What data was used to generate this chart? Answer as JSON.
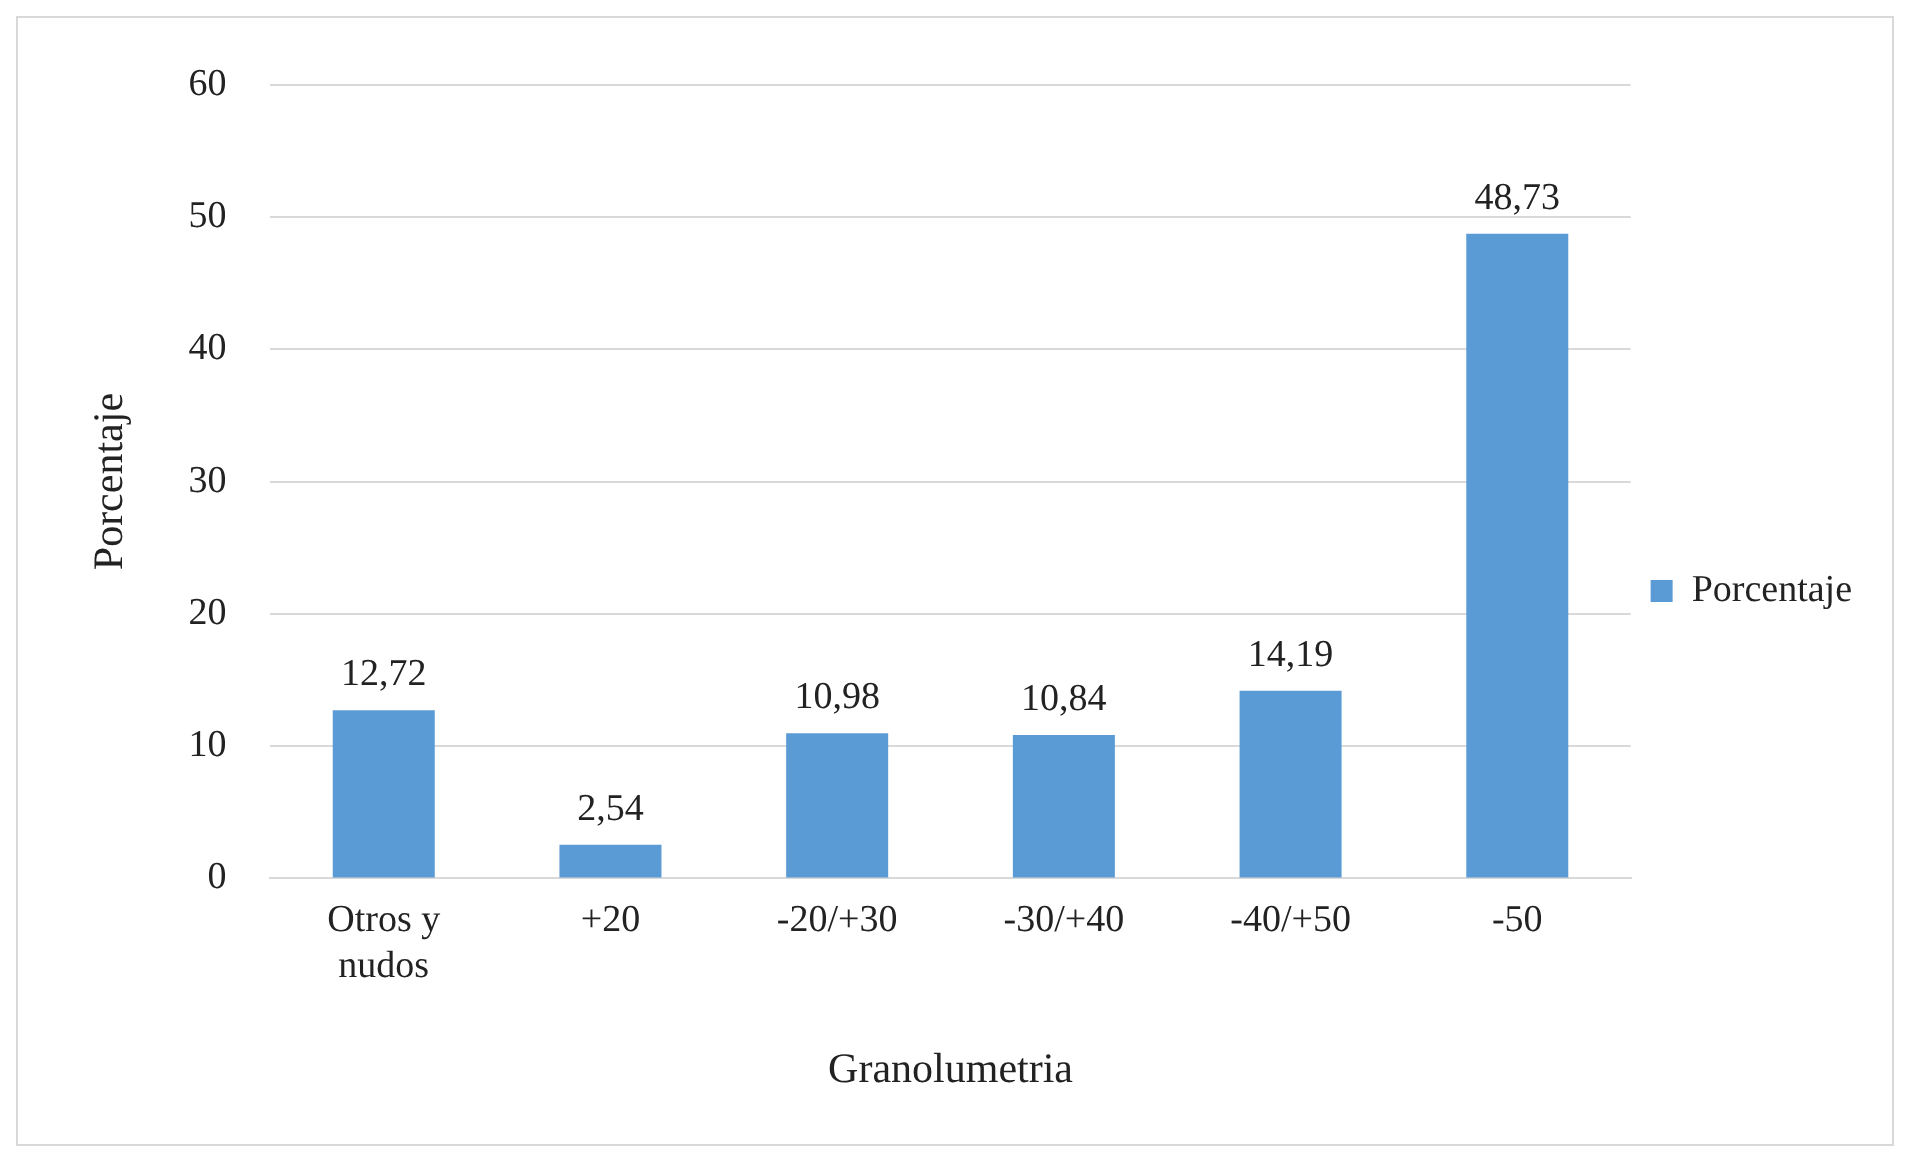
{
  "chart_data": {
    "type": "bar",
    "xlabel": "Granolumetria",
    "ylabel": "Porcentaje",
    "categories": [
      "Otros y nudos",
      "+20",
      "-20/+30",
      "-30/+40",
      "-40/+50",
      "-50"
    ],
    "series": [
      {
        "name": "Porcentaje",
        "color": "#5b9bd5",
        "values": [
          12.72,
          2.54,
          10.98,
          10.84,
          14.19,
          48.73
        ],
        "value_labels": [
          "12,72",
          "2,54",
          "10,98",
          "10,84",
          "14,19",
          "48,73"
        ]
      }
    ],
    "ylim": [
      0,
      60
    ],
    "yticks": [
      0,
      10,
      20,
      30,
      40,
      50,
      60
    ],
    "grid": "y",
    "legend": "right"
  }
}
